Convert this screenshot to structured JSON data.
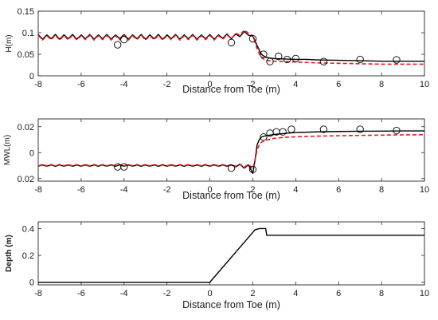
{
  "chart_data": [
    {
      "type": "line",
      "ylabel": "H(m)",
      "xlabel": "Distance from Toe (m)",
      "xlim": [
        -8,
        10
      ],
      "ylim": [
        0,
        0.15
      ],
      "xticks": [
        "-8",
        "-6",
        "-4",
        "-2",
        "0",
        "2",
        "4",
        "6",
        "8",
        "10"
      ],
      "yticks": [
        "0",
        "0.05",
        "0.1",
        "0.15"
      ],
      "series": [
        {
          "style": "solid-black",
          "color": "#000000",
          "x": [
            -8,
            -7.8,
            -7.6,
            -7.4,
            -7.2,
            -7.0,
            -6.8,
            -6.6,
            -6.4,
            -6.2,
            -6.0,
            -5.8,
            -5.6,
            -5.4,
            -5.2,
            -5.0,
            -4.8,
            -4.6,
            -4.4,
            -4.2,
            -4.0,
            -3.8,
            -3.6,
            -3.4,
            -3.2,
            -3.0,
            -2.8,
            -2.6,
            -2.4,
            -2.2,
            -2.0,
            -1.8,
            -1.6,
            -1.4,
            -1.2,
            -1.0,
            -0.8,
            -0.6,
            -0.4,
            -0.2,
            0.0,
            0.2,
            0.4,
            0.6,
            0.8,
            1.0,
            1.2,
            1.4,
            1.6,
            1.8,
            2.0,
            2.1,
            2.2,
            2.4,
            2.6,
            3.0,
            3.5,
            4.0,
            4.5,
            5.0,
            6.0,
            7.0,
            8.0,
            9.0,
            10.0
          ],
          "y": [
            0.096,
            0.085,
            0.095,
            0.086,
            0.096,
            0.085,
            0.095,
            0.086,
            0.096,
            0.085,
            0.095,
            0.086,
            0.096,
            0.085,
            0.095,
            0.086,
            0.096,
            0.085,
            0.095,
            0.086,
            0.096,
            0.085,
            0.095,
            0.086,
            0.096,
            0.085,
            0.095,
            0.086,
            0.096,
            0.085,
            0.095,
            0.086,
            0.096,
            0.085,
            0.095,
            0.086,
            0.096,
            0.085,
            0.095,
            0.086,
            0.096,
            0.085,
            0.095,
            0.087,
            0.097,
            0.086,
            0.097,
            0.091,
            0.103,
            0.094,
            0.092,
            0.082,
            0.07,
            0.05,
            0.043,
            0.04,
            0.039,
            0.038,
            0.038,
            0.037,
            0.036,
            0.035,
            0.034,
            0.034,
            0.034
          ]
        },
        {
          "style": "dashed-red",
          "color": "#e8191a",
          "x": [
            -8,
            -7.8,
            -7.6,
            -7.4,
            -7.2,
            -7.0,
            -6.8,
            -6.6,
            -6.4,
            -6.2,
            -6.0,
            -5.8,
            -5.6,
            -5.4,
            -5.2,
            -5.0,
            -4.8,
            -4.6,
            -4.4,
            -4.2,
            -4.0,
            -3.8,
            -3.6,
            -3.4,
            -3.2,
            -3.0,
            -2.8,
            -2.6,
            -2.4,
            -2.2,
            -2.0,
            -1.8,
            -1.6,
            -1.4,
            -1.2,
            -1.0,
            -0.8,
            -0.6,
            -0.4,
            -0.2,
            0.0,
            0.2,
            0.4,
            0.6,
            0.8,
            1.0,
            1.2,
            1.4,
            1.6,
            1.8,
            2.0,
            2.1,
            2.2,
            2.4,
            2.6,
            3.0,
            3.5,
            4.0,
            4.5,
            5.0,
            6.0,
            7.0,
            8.0,
            9.0,
            10.0
          ],
          "y": [
            0.094,
            0.083,
            0.093,
            0.084,
            0.094,
            0.083,
            0.093,
            0.084,
            0.094,
            0.083,
            0.093,
            0.084,
            0.094,
            0.083,
            0.093,
            0.084,
            0.094,
            0.083,
            0.093,
            0.084,
            0.094,
            0.083,
            0.093,
            0.084,
            0.094,
            0.083,
            0.093,
            0.084,
            0.094,
            0.083,
            0.093,
            0.084,
            0.094,
            0.083,
            0.093,
            0.084,
            0.094,
            0.083,
            0.093,
            0.084,
            0.094,
            0.083,
            0.093,
            0.085,
            0.095,
            0.086,
            0.099,
            0.094,
            0.106,
            0.099,
            0.093,
            0.078,
            0.062,
            0.042,
            0.036,
            0.034,
            0.033,
            0.032,
            0.031,
            0.03,
            0.029,
            0.028,
            0.027,
            0.027,
            0.027
          ]
        },
        {
          "style": "circles",
          "color": "#000000",
          "x": [
            -4.3,
            -4.0,
            1.0,
            2.0,
            2.5,
            2.8,
            3.2,
            3.6,
            4.0,
            5.3,
            7.0,
            8.7
          ],
          "y": [
            0.072,
            0.084,
            0.077,
            0.086,
            0.05,
            0.033,
            0.045,
            0.038,
            0.04,
            0.033,
            0.038,
            0.037
          ]
        }
      ]
    },
    {
      "type": "line",
      "ylabel": "MWL(m)",
      "xlabel": "Distance from Toe (m)",
      "xlim": [
        -8,
        10
      ],
      "ylim": [
        -0.022,
        0.026
      ],
      "xticks": [
        "-8",
        "-6",
        "-4",
        "-2",
        "0",
        "2",
        "4",
        "6",
        "8",
        "10"
      ],
      "yticks": [
        "0.02",
        "0",
        "0.02"
      ],
      "series": [
        {
          "style": "solid-black",
          "color": "#000000",
          "x": [
            -8,
            -7.8,
            -7.6,
            -7.4,
            -7.2,
            -7.0,
            -6.8,
            -6.6,
            -6.4,
            -6.2,
            -6.0,
            -5.8,
            -5.6,
            -5.4,
            -5.2,
            -5.0,
            -4.8,
            -4.6,
            -4.4,
            -4.2,
            -4.0,
            -3.8,
            -3.6,
            -3.4,
            -3.2,
            -3.0,
            -2.8,
            -2.6,
            -2.4,
            -2.2,
            -2.0,
            -1.8,
            -1.6,
            -1.4,
            -1.2,
            -1.0,
            -0.8,
            -0.6,
            -0.4,
            -0.2,
            0.0,
            0.2,
            0.4,
            0.6,
            0.8,
            1.0,
            1.2,
            1.4,
            1.6,
            1.8,
            2.0,
            2.1,
            2.2,
            2.3,
            2.4,
            2.6,
            3.0,
            3.5,
            4.0,
            5.0,
            6.0,
            7.0,
            8.0,
            9.0,
            10.0
          ],
          "y": [
            -0.0105,
            -0.0095,
            -0.0105,
            -0.0095,
            -0.0105,
            -0.0095,
            -0.0105,
            -0.0095,
            -0.0105,
            -0.0095,
            -0.0105,
            -0.0095,
            -0.0105,
            -0.0095,
            -0.0105,
            -0.0095,
            -0.0105,
            -0.0095,
            -0.0105,
            -0.0095,
            -0.0105,
            -0.0095,
            -0.0105,
            -0.0095,
            -0.0105,
            -0.0095,
            -0.0105,
            -0.0095,
            -0.0105,
            -0.0095,
            -0.0105,
            -0.0095,
            -0.0105,
            -0.0095,
            -0.0105,
            -0.0095,
            -0.0105,
            -0.0095,
            -0.0105,
            -0.0095,
            -0.0105,
            -0.0095,
            -0.0105,
            -0.0095,
            -0.0105,
            -0.0095,
            -0.011,
            -0.009,
            -0.012,
            -0.0095,
            -0.016,
            -0.006,
            0.006,
            0.01,
            0.012,
            0.013,
            0.014,
            0.0148,
            0.0155,
            0.016,
            0.0163,
            0.0165,
            0.0166,
            0.0167,
            0.0167
          ]
        },
        {
          "style": "dashed-red",
          "color": "#e8191a",
          "x": [
            -8,
            -7.8,
            -7.6,
            -7.4,
            -7.2,
            -7.0,
            -6.8,
            -6.6,
            -6.4,
            -6.2,
            -6.0,
            -5.8,
            -5.6,
            -5.4,
            -5.2,
            -5.0,
            -4.8,
            -4.6,
            -4.4,
            -4.2,
            -4.0,
            -3.8,
            -3.6,
            -3.4,
            -3.2,
            -3.0,
            -2.8,
            -2.6,
            -2.4,
            -2.2,
            -2.0,
            -1.8,
            -1.6,
            -1.4,
            -1.2,
            -1.0,
            -0.8,
            -0.6,
            -0.4,
            -0.2,
            0.0,
            0.2,
            0.4,
            0.6,
            0.8,
            1.0,
            1.2,
            1.4,
            1.6,
            1.8,
            2.0,
            2.1,
            2.2,
            2.3,
            2.4,
            2.6,
            3.0,
            3.5,
            4.0,
            5.0,
            6.0,
            7.0,
            8.0,
            9.0,
            10.0
          ],
          "y": [
            -0.0102,
            -0.0092,
            -0.0102,
            -0.0092,
            -0.0102,
            -0.0092,
            -0.0102,
            -0.0092,
            -0.0102,
            -0.0092,
            -0.0102,
            -0.0092,
            -0.0102,
            -0.0092,
            -0.0102,
            -0.0092,
            -0.0102,
            -0.0092,
            -0.0102,
            -0.0092,
            -0.0102,
            -0.0092,
            -0.0102,
            -0.0092,
            -0.0102,
            -0.0092,
            -0.0102,
            -0.0092,
            -0.0102,
            -0.0092,
            -0.0102,
            -0.0092,
            -0.0102,
            -0.0092,
            -0.0102,
            -0.0092,
            -0.0102,
            -0.0092,
            -0.0102,
            -0.0092,
            -0.0102,
            -0.0092,
            -0.0102,
            -0.0092,
            -0.0102,
            -0.0092,
            -0.0105,
            -0.0088,
            -0.0112,
            -0.009,
            -0.0125,
            -0.006,
            0.002,
            0.006,
            0.008,
            0.0095,
            0.011,
            0.0118,
            0.0122,
            0.0127,
            0.013,
            0.0133,
            0.0135,
            0.0137,
            0.0138
          ]
        },
        {
          "style": "circles",
          "color": "#000000",
          "x": [
            -4.3,
            -4.0,
            1.0,
            2.0,
            2.5,
            2.8,
            3.1,
            3.4,
            3.8,
            5.3,
            7.0,
            8.7
          ],
          "y": [
            -0.011,
            -0.011,
            -0.012,
            -0.013,
            0.012,
            0.015,
            0.016,
            0.016,
            0.018,
            0.018,
            0.018,
            0.017
          ]
        }
      ]
    },
    {
      "type": "line",
      "ylabel": "Depth (m)",
      "xlabel": "Distance from Toe (m)",
      "xlim": [
        -8,
        10
      ],
      "ylim": [
        -0.02,
        0.45
      ],
      "xticks": [
        "-8",
        "-6",
        "-4",
        "-2",
        "0",
        "2",
        "4",
        "6",
        "8",
        "10"
      ],
      "yticks": [
        "0",
        "0.2",
        "0.4"
      ],
      "series": [
        {
          "style": "solid-black",
          "color": "#000000",
          "x": [
            -8,
            0,
            2.1,
            2.3,
            2.5,
            2.6,
            2.65,
            10
          ],
          "y": [
            0.0,
            0.0,
            0.39,
            0.4,
            0.4,
            0.4,
            0.35,
            0.35
          ]
        }
      ]
    }
  ]
}
